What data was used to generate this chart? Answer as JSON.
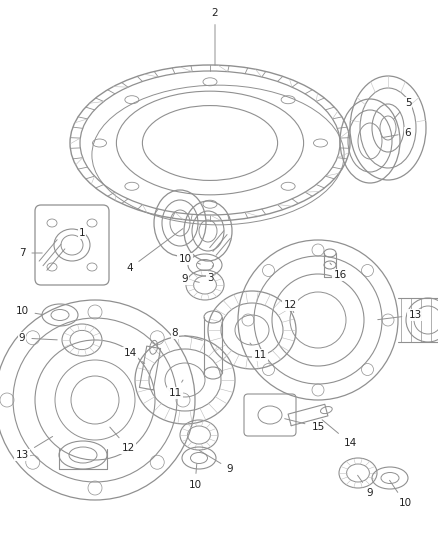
{
  "bg_color": "#ffffff",
  "lc": "#909090",
  "tc": "#222222",
  "fig_w": 4.38,
  "fig_h": 5.33,
  "dpi": 100
}
